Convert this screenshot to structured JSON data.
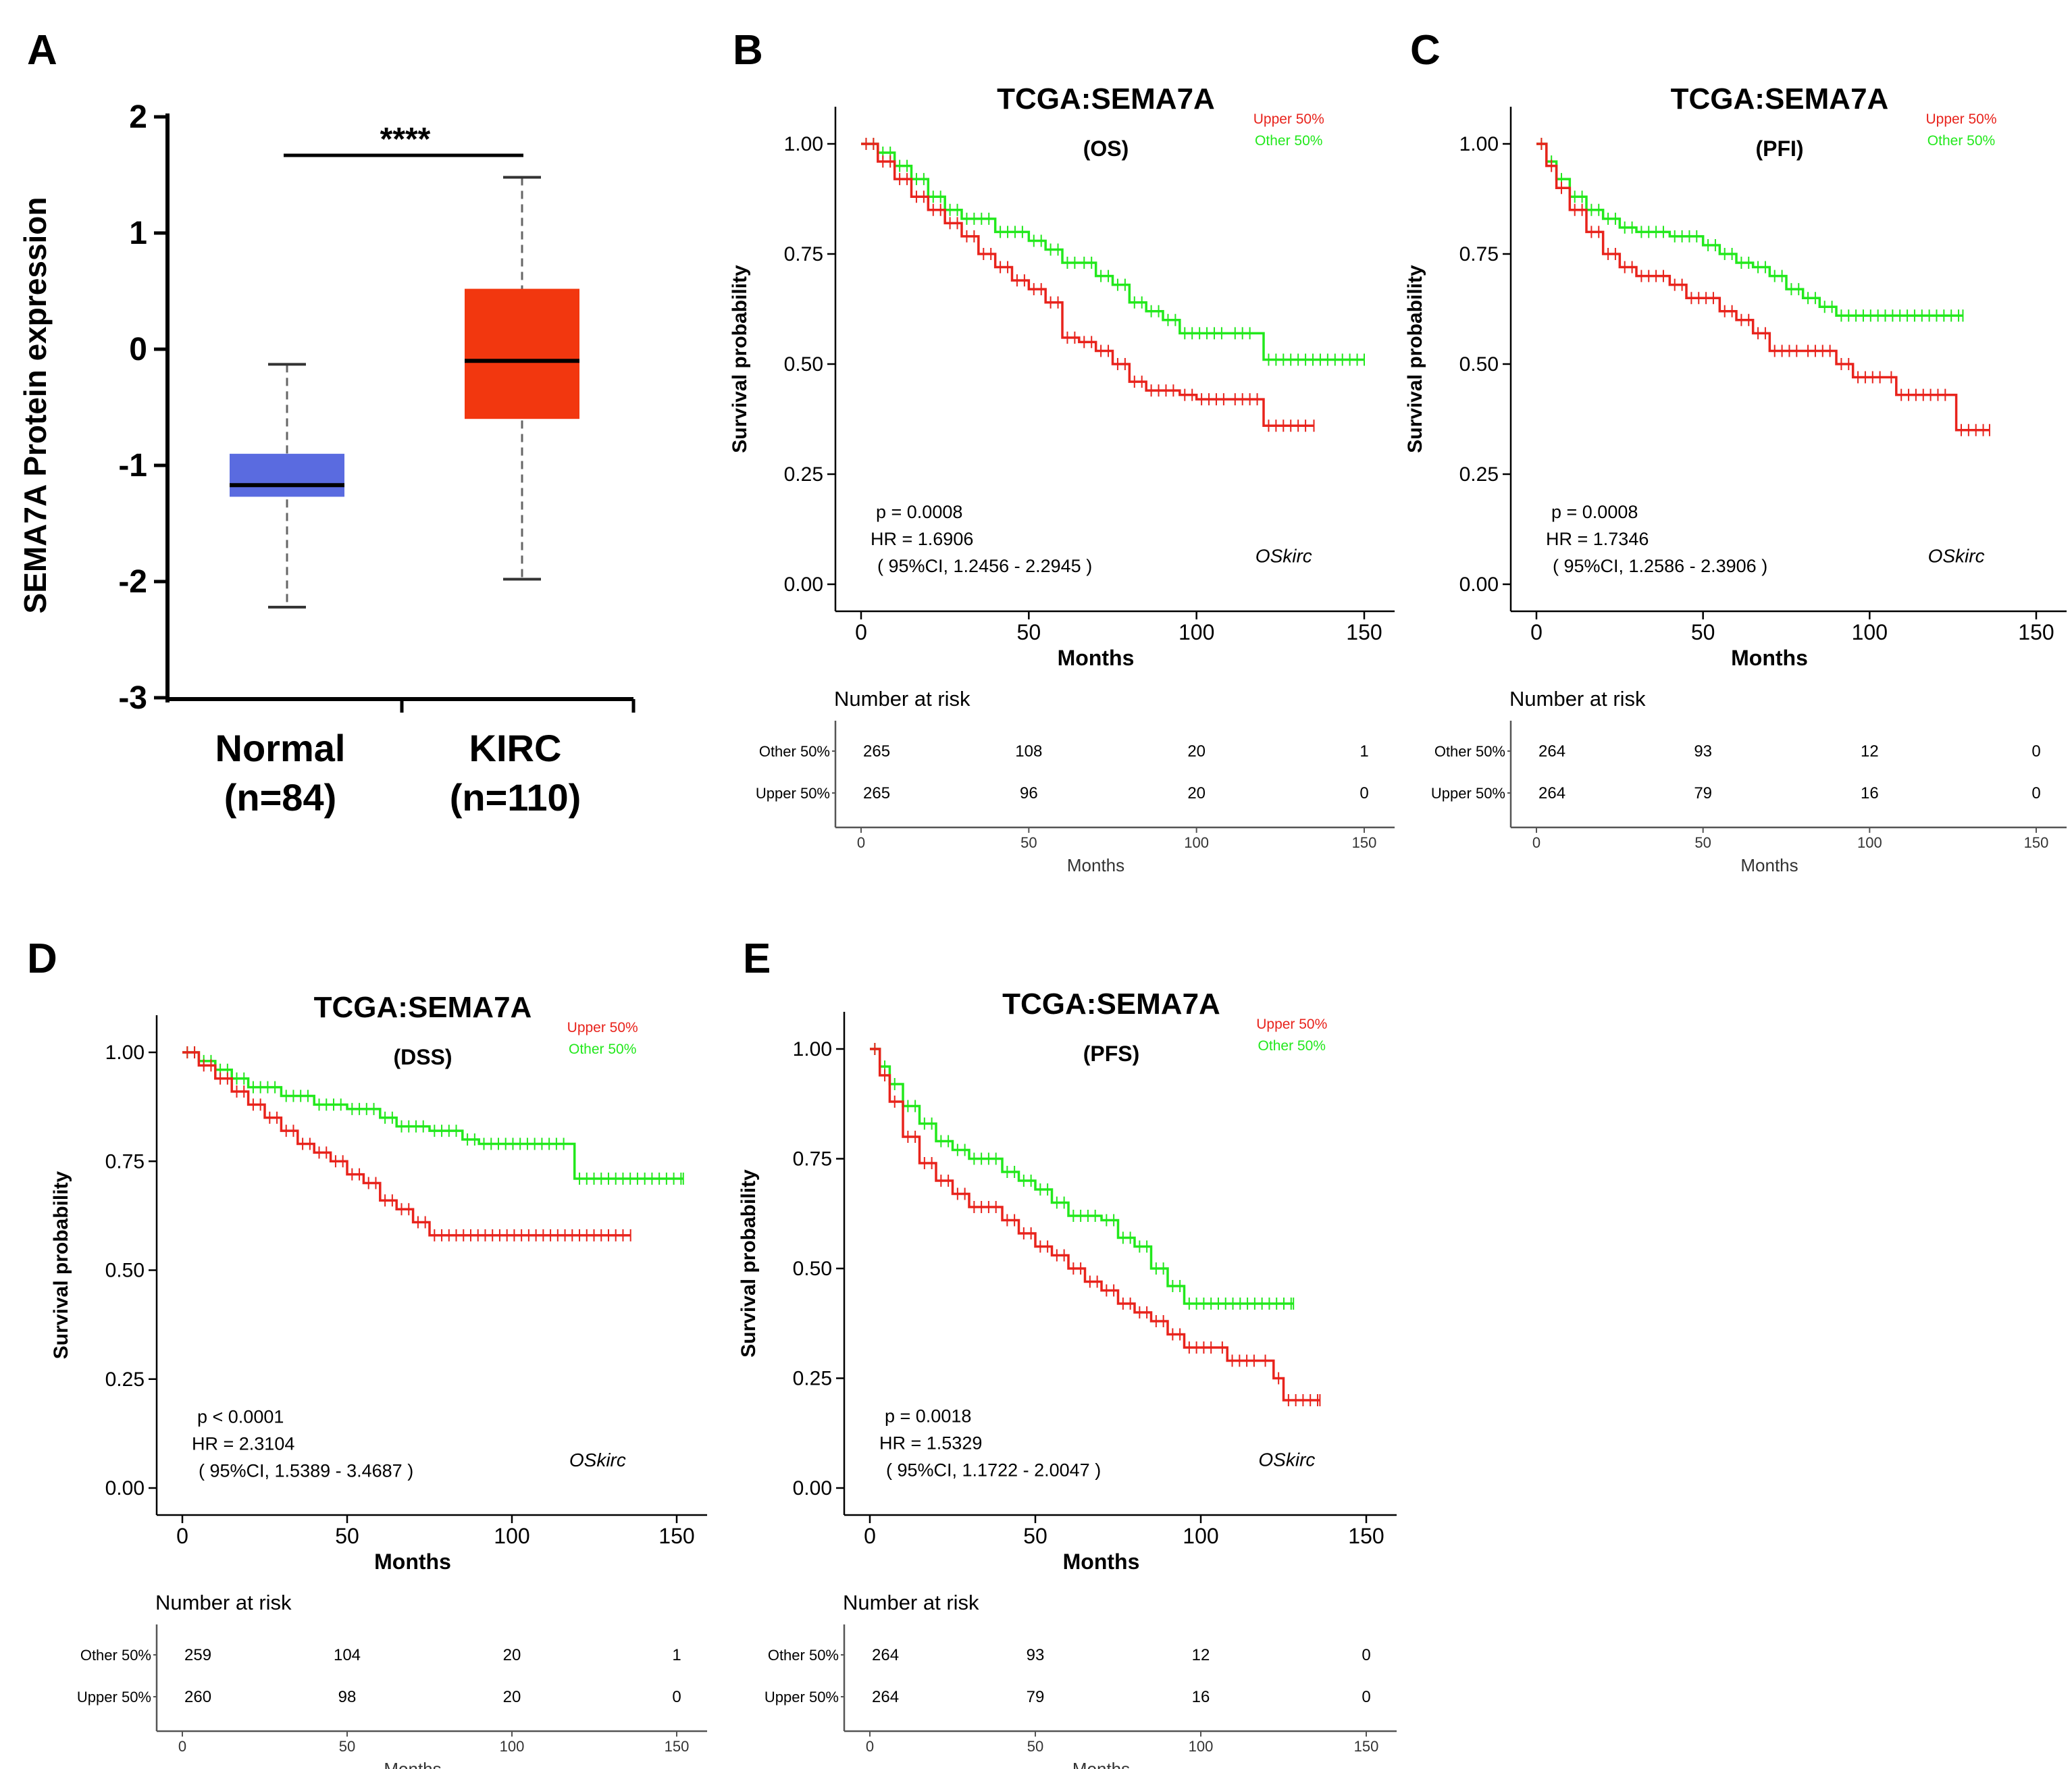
{
  "colors": {
    "high": "#e8231c",
    "low": "#22e81c",
    "normal_box": "#5a6be0",
    "kirc_box": "#f2370f",
    "axis": "#000000",
    "sub_axis": "#555555"
  },
  "chart_data": [
    {
      "panel": "A",
      "type": "box",
      "ylabel": "SEMA7A Protein expression",
      "ylim": [
        -3,
        2
      ],
      "yticks": [
        "2",
        "1",
        "0",
        "-1",
        "-2",
        "-3"
      ],
      "significance": "****",
      "groups": [
        {
          "name": "Normal",
          "n_label": "(n=84)",
          "min": -2.22,
          "q1": -1.27,
          "median": -1.17,
          "q3": -0.9,
          "max": -0.13
        },
        {
          "name": "KIRC",
          "n_label": "(n=110)",
          "min": -1.98,
          "q1": -0.6,
          "median": -0.1,
          "q3": 0.52,
          "max": 1.48
        }
      ]
    },
    {
      "panel": "B",
      "type": "line",
      "title": "TCGA:SEMA7A",
      "subtitle": "(OS)",
      "xlabel": "Months",
      "ylabel": "Survival probability",
      "xlim": [
        0,
        150
      ],
      "ylim": [
        0,
        1
      ],
      "xticks": [
        "0",
        "50",
        "100",
        "150"
      ],
      "yticks": [
        "1.00",
        "0.75",
        "0.50",
        "0.25",
        "0.00"
      ],
      "legend": [
        "Upper 50%",
        "Other  50%"
      ],
      "stats": [
        "p = 0.0008",
        "HR = 1.6906",
        "( 95%CI, 1.2456 - 2.2945 )"
      ],
      "cohort": "OSkirc",
      "series": [
        {
          "name": "Upper 50%",
          "points": [
            [
              0,
              1
            ],
            [
              5,
              0.96
            ],
            [
              10,
              0.92
            ],
            [
              15,
              0.88
            ],
            [
              20,
              0.85
            ],
            [
              25,
              0.82
            ],
            [
              30,
              0.79
            ],
            [
              35,
              0.75
            ],
            [
              40,
              0.72
            ],
            [
              45,
              0.69
            ],
            [
              50,
              0.67
            ],
            [
              55,
              0.64
            ],
            [
              60,
              0.56
            ],
            [
              65,
              0.55
            ],
            [
              70,
              0.53
            ],
            [
              75,
              0.5
            ],
            [
              80,
              0.46
            ],
            [
              85,
              0.44
            ],
            [
              95,
              0.43
            ],
            [
              100,
              0.42
            ],
            [
              110,
              0.42
            ],
            [
              120,
              0.36
            ],
            [
              135,
              0.36
            ]
          ]
        },
        {
          "name": "Other 50%",
          "points": [
            [
              0,
              1
            ],
            [
              5,
              0.98
            ],
            [
              10,
              0.95
            ],
            [
              15,
              0.92
            ],
            [
              20,
              0.88
            ],
            [
              25,
              0.85
            ],
            [
              30,
              0.83
            ],
            [
              40,
              0.8
            ],
            [
              50,
              0.78
            ],
            [
              55,
              0.76
            ],
            [
              60,
              0.73
            ],
            [
              65,
              0.73
            ],
            [
              70,
              0.7
            ],
            [
              75,
              0.68
            ],
            [
              80,
              0.64
            ],
            [
              85,
              0.62
            ],
            [
              90,
              0.6
            ],
            [
              95,
              0.57
            ],
            [
              110,
              0.57
            ],
            [
              118,
              0.57
            ],
            [
              120,
              0.51
            ],
            [
              150,
              0.51
            ]
          ]
        }
      ],
      "risk_table": {
        "title": "Number at risk",
        "xlabel": "Months",
        "times": [
          "0",
          "50",
          "100",
          "150"
        ],
        "rows": [
          {
            "label": "Other  50%",
            "values": [
              "265",
              "108",
              "20",
              "1"
            ]
          },
          {
            "label": "Upper 50%",
            "values": [
              "265",
              "96",
              "20",
              "0"
            ]
          }
        ]
      }
    },
    {
      "panel": "C",
      "type": "line",
      "title": "TCGA:SEMA7A",
      "subtitle": "(PFI)",
      "xlabel": "Months",
      "ylabel": "Survival probability",
      "xlim": [
        0,
        150
      ],
      "ylim": [
        0,
        1
      ],
      "xticks": [
        "0",
        "50",
        "100",
        "150"
      ],
      "yticks": [
        "1.00",
        "0.75",
        "0.50",
        "0.25",
        "0.00"
      ],
      "legend": [
        "Upper 50%",
        "Other  50%"
      ],
      "stats": [
        "p = 0.0008",
        "HR = 1.7346",
        "( 95%CI, 1.2586 - 2.3906 )"
      ],
      "cohort": "OSkirc",
      "series": [
        {
          "name": "Upper 50%",
          "points": [
            [
              0,
              1
            ],
            [
              3,
              0.95
            ],
            [
              6,
              0.9
            ],
            [
              10,
              0.85
            ],
            [
              15,
              0.8
            ],
            [
              20,
              0.75
            ],
            [
              25,
              0.72
            ],
            [
              30,
              0.7
            ],
            [
              40,
              0.68
            ],
            [
              45,
              0.65
            ],
            [
              55,
              0.62
            ],
            [
              60,
              0.6
            ],
            [
              65,
              0.57
            ],
            [
              70,
              0.53
            ],
            [
              80,
              0.53
            ],
            [
              90,
              0.5
            ],
            [
              95,
              0.47
            ],
            [
              105,
              0.47
            ],
            [
              108,
              0.43
            ],
            [
              125,
              0.43
            ],
            [
              126,
              0.35
            ],
            [
              136,
              0.35
            ]
          ]
        },
        {
          "name": "Other 50%",
          "points": [
            [
              0,
              1
            ],
            [
              3,
              0.96
            ],
            [
              6,
              0.92
            ],
            [
              10,
              0.88
            ],
            [
              15,
              0.85
            ],
            [
              20,
              0.83
            ],
            [
              25,
              0.81
            ],
            [
              30,
              0.8
            ],
            [
              40,
              0.79
            ],
            [
              50,
              0.77
            ],
            [
              55,
              0.75
            ],
            [
              60,
              0.73
            ],
            [
              65,
              0.72
            ],
            [
              70,
              0.7
            ],
            [
              75,
              0.67
            ],
            [
              80,
              0.65
            ],
            [
              85,
              0.63
            ],
            [
              90,
              0.61
            ],
            [
              128,
              0.61
            ]
          ]
        }
      ],
      "risk_table": {
        "title": "Number at risk",
        "xlabel": "Months",
        "times": [
          "0",
          "50",
          "100",
          "150"
        ],
        "rows": [
          {
            "label": "Other  50%",
            "values": [
              "264",
              "93",
              "12",
              "0"
            ]
          },
          {
            "label": "Upper 50%",
            "values": [
              "264",
              "79",
              "16",
              "0"
            ]
          }
        ]
      }
    },
    {
      "panel": "D",
      "type": "line",
      "title": "TCGA:SEMA7A",
      "subtitle": "(DSS)",
      "xlabel": "Months",
      "ylabel": "Survival probability",
      "xlim": [
        0,
        150
      ],
      "ylim": [
        0,
        1
      ],
      "xticks": [
        "0",
        "50",
        "100",
        "150"
      ],
      "yticks": [
        "1.00",
        "0.75",
        "0.50",
        "0.25",
        "0.00"
      ],
      "legend": [
        "Upper 50%",
        "Other  50%"
      ],
      "stats": [
        "p < 0.0001",
        "HR = 2.3104",
        "( 95%CI, 1.5389 - 3.4687 )"
      ],
      "cohort": "OSkirc",
      "series": [
        {
          "name": "Upper 50%",
          "points": [
            [
              0,
              1
            ],
            [
              5,
              0.97
            ],
            [
              10,
              0.94
            ],
            [
              15,
              0.91
            ],
            [
              20,
              0.88
            ],
            [
              25,
              0.85
            ],
            [
              30,
              0.82
            ],
            [
              35,
              0.79
            ],
            [
              40,
              0.77
            ],
            [
              45,
              0.75
            ],
            [
              50,
              0.72
            ],
            [
              55,
              0.7
            ],
            [
              60,
              0.66
            ],
            [
              65,
              0.64
            ],
            [
              70,
              0.61
            ],
            [
              75,
              0.58
            ],
            [
              136,
              0.58
            ]
          ]
        },
        {
          "name": "Other 50%",
          "points": [
            [
              0,
              1
            ],
            [
              5,
              0.98
            ],
            [
              10,
              0.96
            ],
            [
              15,
              0.94
            ],
            [
              20,
              0.92
            ],
            [
              30,
              0.9
            ],
            [
              40,
              0.88
            ],
            [
              50,
              0.87
            ],
            [
              60,
              0.85
            ],
            [
              65,
              0.83
            ],
            [
              75,
              0.82
            ],
            [
              85,
              0.8
            ],
            [
              90,
              0.79
            ],
            [
              118,
              0.79
            ],
            [
              119,
              0.71
            ],
            [
              152,
              0.71
            ]
          ]
        }
      ],
      "risk_table": {
        "title": "Number at risk",
        "xlabel": "Months",
        "times": [
          "0",
          "50",
          "100",
          "150"
        ],
        "rows": [
          {
            "label": "Other  50%",
            "values": [
              "259",
              "104",
              "20",
              "1"
            ]
          },
          {
            "label": "Upper 50%",
            "values": [
              "260",
              "98",
              "20",
              "0"
            ]
          }
        ]
      }
    },
    {
      "panel": "E",
      "type": "line",
      "title": "TCGA:SEMA7A",
      "subtitle": "(PFS)",
      "xlabel": "Months",
      "ylabel": "Survival probability",
      "xlim": [
        0,
        150
      ],
      "ylim": [
        0,
        1
      ],
      "xticks": [
        "0",
        "50",
        "100",
        "150"
      ],
      "yticks": [
        "1.00",
        "0.75",
        "0.50",
        "0.25",
        "0.00"
      ],
      "legend": [
        "Upper 50%",
        "Other  50%"
      ],
      "stats": [
        "p = 0.0018",
        "HR = 1.5329",
        "( 95%CI, 1.1722 - 2.0047 )"
      ],
      "cohort": "OSkirc",
      "series": [
        {
          "name": "Upper 50%",
          "points": [
            [
              0,
              1
            ],
            [
              3,
              0.94
            ],
            [
              6,
              0.88
            ],
            [
              10,
              0.8
            ],
            [
              15,
              0.74
            ],
            [
              20,
              0.7
            ],
            [
              25,
              0.67
            ],
            [
              30,
              0.64
            ],
            [
              40,
              0.61
            ],
            [
              45,
              0.58
            ],
            [
              50,
              0.55
            ],
            [
              55,
              0.53
            ],
            [
              60,
              0.5
            ],
            [
              65,
              0.47
            ],
            [
              70,
              0.45
            ],
            [
              75,
              0.42
            ],
            [
              80,
              0.4
            ],
            [
              85,
              0.38
            ],
            [
              90,
              0.35
            ],
            [
              95,
              0.32
            ],
            [
              105,
              0.32
            ],
            [
              108,
              0.29
            ],
            [
              118,
              0.29
            ],
            [
              122,
              0.25
            ],
            [
              125,
              0.2
            ],
            [
              136,
              0.2
            ]
          ]
        },
        {
          "name": "Other 50%",
          "points": [
            [
              0,
              1
            ],
            [
              3,
              0.96
            ],
            [
              6,
              0.92
            ],
            [
              10,
              0.87
            ],
            [
              15,
              0.83
            ],
            [
              20,
              0.79
            ],
            [
              25,
              0.77
            ],
            [
              30,
              0.75
            ],
            [
              40,
              0.72
            ],
            [
              45,
              0.7
            ],
            [
              50,
              0.68
            ],
            [
              55,
              0.65
            ],
            [
              60,
              0.62
            ],
            [
              70,
              0.61
            ],
            [
              75,
              0.57
            ],
            [
              80,
              0.55
            ],
            [
              85,
              0.5
            ],
            [
              90,
              0.46
            ],
            [
              95,
              0.42
            ],
            [
              128,
              0.42
            ]
          ]
        }
      ],
      "risk_table": {
        "title": "Number at risk",
        "xlabel": "Months",
        "times": [
          "0",
          "50",
          "100",
          "150"
        ],
        "rows": [
          {
            "label": "Other  50%",
            "values": [
              "264",
              "93",
              "12",
              "0"
            ]
          },
          {
            "label": "Upper 50%",
            "values": [
              "264",
              "79",
              "16",
              "0"
            ]
          }
        ]
      }
    }
  ]
}
